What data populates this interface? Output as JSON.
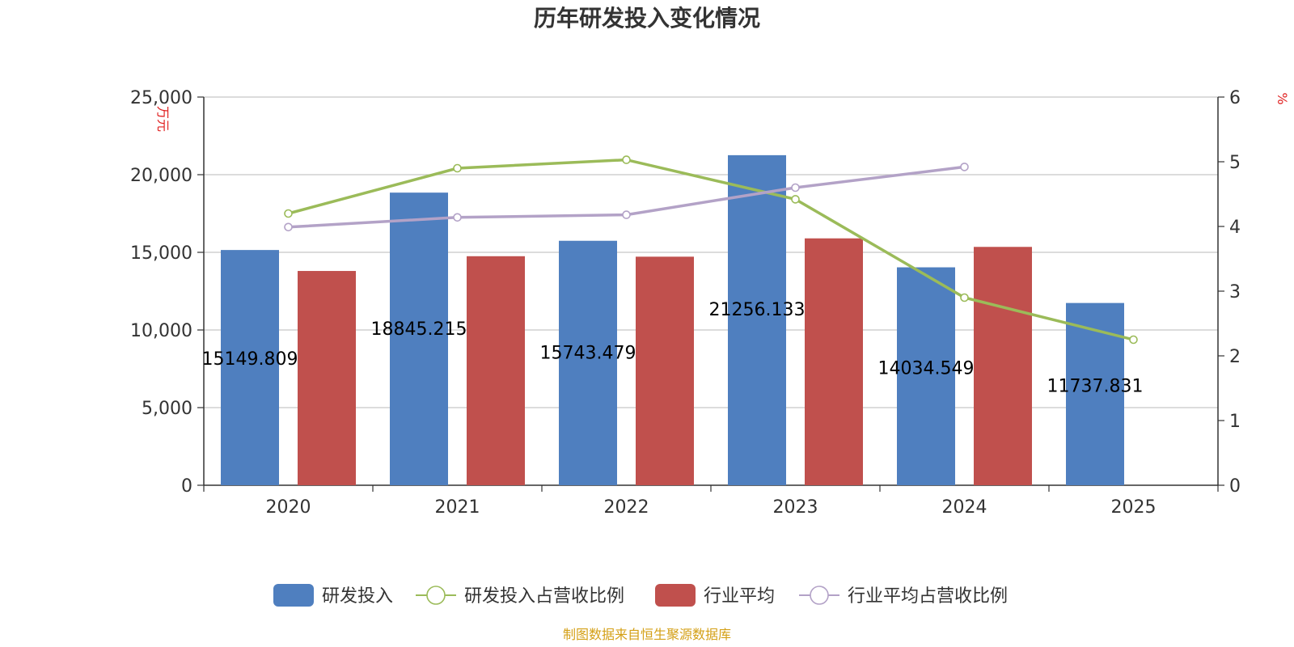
{
  "chart_data": {
    "type": "bar",
    "title": "历年研发投入变化情况",
    "categories": [
      "2020",
      "2021",
      "2022",
      "2023",
      "2024",
      "2025"
    ],
    "y_left": {
      "unit": "万元",
      "ylim": [
        0,
        25000
      ],
      "ticks": [
        "0",
        "5,000",
        "10,000",
        "15,000",
        "20,000",
        "25,000"
      ]
    },
    "y_right": {
      "unit": "%",
      "ylim": [
        0,
        6
      ],
      "ticks": [
        "0",
        "1",
        "2",
        "3",
        "4",
        "5",
        "6"
      ]
    },
    "grid": true,
    "legend_position": "bottom",
    "series": [
      {
        "name": "研发投入",
        "type": "bar",
        "axis": "left",
        "color": "#4f7fbf",
        "values": [
          15149.809,
          18845.215,
          15743.479,
          21256.133,
          14034.549,
          11737.831
        ],
        "labels": [
          "15149.809",
          "18845.215",
          "15743.479",
          "21256.133",
          "14034.549",
          "11737.831"
        ]
      },
      {
        "name": "研发投入占营收比例",
        "type": "line",
        "axis": "right",
        "color": "#9bbb59",
        "values": [
          4.2,
          4.9,
          5.03,
          4.42,
          2.9,
          2.25
        ]
      },
      {
        "name": "行业平均",
        "type": "bar",
        "axis": "left",
        "color": "#c0504d",
        "values": [
          13800,
          14750,
          14720,
          15900,
          15350,
          null
        ]
      },
      {
        "name": "行业平均占营收比例",
        "type": "line",
        "axis": "right",
        "color": "#b3a2c7",
        "values": [
          3.99,
          4.14,
          4.18,
          4.6,
          4.92,
          null
        ]
      }
    ],
    "source": "制图数据来自恒生聚源数据库"
  }
}
